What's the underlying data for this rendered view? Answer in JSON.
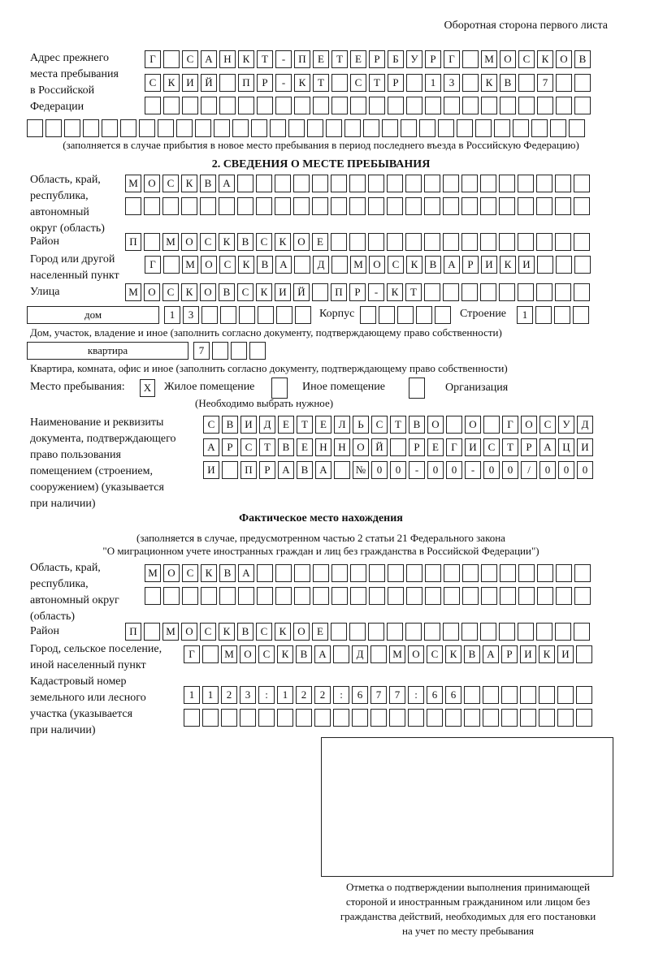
{
  "header": "Оборотная сторона первого листа",
  "prev_address": {
    "label": "Адрес прежнего\nместа пребывания\nв Российской\nФедерации",
    "rows": [
      [
        "Г",
        "",
        "С",
        "А",
        "Н",
        "К",
        "Т",
        "-",
        "П",
        "Е",
        "Т",
        "Е",
        "Р",
        "Б",
        "У",
        "Р",
        "Г",
        "",
        "М",
        "О",
        "С",
        "К",
        "О",
        "В"
      ],
      [
        "С",
        "К",
        "И",
        "Й",
        "",
        "П",
        "Р",
        "-",
        "К",
        "Т",
        "",
        "С",
        "Т",
        "Р",
        "",
        "1",
        "3",
        "",
        "К",
        "В",
        "",
        "7",
        "",
        ""
      ],
      [
        "",
        "",
        "",
        "",
        "",
        "",
        "",
        "",
        "",
        "",
        "",
        "",
        "",
        "",
        "",
        "",
        "",
        "",
        "",
        "",
        "",
        "",
        "",
        ""
      ]
    ],
    "full_row": [
      "",
      "",
      "",
      "",
      "",
      "",
      "",
      "",
      "",
      "",
      "",
      "",
      "",
      "",
      "",
      "",
      "",
      "",
      "",
      "",
      "",
      "",
      "",
      "",
      "",
      "",
      "",
      "",
      "",
      ""
    ],
    "note": "(заполняется в случае прибытия в новое место пребывания в период последнего въезда в Российскую Федерацию)"
  },
  "section2": {
    "title": "2. СВЕДЕНИЯ О МЕСТЕ ПРЕБЫВАНИЯ",
    "region_label": "Область, край,\nреспублика,\nавтономный\nокруг (область)",
    "region_rows": [
      [
        "М",
        "О",
        "С",
        "К",
        "В",
        "А",
        "",
        "",
        "",
        "",
        "",
        "",
        "",
        "",
        "",
        "",
        "",
        "",
        "",
        "",
        "",
        "",
        "",
        "",
        ""
      ],
      [
        "",
        "",
        "",
        "",
        "",
        "",
        "",
        "",
        "",
        "",
        "",
        "",
        "",
        "",
        "",
        "",
        "",
        "",
        "",
        "",
        "",
        "",
        "",
        "",
        ""
      ]
    ],
    "district_label": "Район",
    "district": [
      "П",
      "",
      "М",
      "О",
      "С",
      "К",
      "В",
      "С",
      "К",
      "О",
      "Е",
      "",
      "",
      "",
      "",
      "",
      "",
      "",
      "",
      "",
      "",
      "",
      "",
      "",
      ""
    ],
    "city_label": "Город или другой\nнаселенный пункт",
    "city": [
      "Г",
      "",
      "М",
      "О",
      "С",
      "К",
      "В",
      "А",
      "",
      "Д",
      "",
      "М",
      "О",
      "С",
      "К",
      "В",
      "А",
      "Р",
      "И",
      "К",
      "И",
      "",
      "",
      ""
    ],
    "street_label": "Улица",
    "street": [
      "М",
      "О",
      "С",
      "К",
      "О",
      "В",
      "С",
      "К",
      "И",
      "Й",
      "",
      "П",
      "Р",
      "-",
      "К",
      "Т",
      "",
      "",
      "",
      "",
      "",
      "",
      "",
      "",
      ""
    ],
    "house_type": "дом",
    "house": [
      "1",
      "3",
      "",
      "",
      "",
      "",
      "",
      ""
    ],
    "korpus_label": "Корпус",
    "korpus": [
      "",
      "",
      "",
      "",
      ""
    ],
    "building_label": "Строение",
    "building": [
      "1",
      "",
      "",
      ""
    ],
    "house_note": "Дом, участок, владение и иное (заполнить согласно документу, подтверждающему право собственности)",
    "flat_type": "квартира",
    "flat": [
      "7",
      "",
      "",
      ""
    ],
    "flat_note": "Квартира, комната, офис и иное (заполнить согласно документу, подтверждающему право собственности)",
    "stay_label": "Место пребывания:",
    "options": [
      {
        "label": "Жилое помещение",
        "mark": "X"
      },
      {
        "label": "Иное помещение",
        "mark": ""
      },
      {
        "label": "Организация",
        "mark": ""
      }
    ],
    "choose_note": "(Необходимо выбрать нужное)",
    "doc_label": "Наименование и реквизиты\nдокумента, подтверждающего\nправо пользования\nпомещением (строением,\nсооружением) (указывается\nпри наличии)",
    "doc_rows": [
      [
        "С",
        "В",
        "И",
        "Д",
        "Е",
        "Т",
        "Е",
        "Л",
        "Ь",
        "С",
        "Т",
        "В",
        "О",
        "",
        "О",
        "",
        "Г",
        "О",
        "С",
        "У",
        "Д"
      ],
      [
        "А",
        "Р",
        "С",
        "Т",
        "В",
        "Е",
        "Н",
        "Н",
        "О",
        "Й",
        "",
        "Р",
        "Е",
        "Г",
        "И",
        "С",
        "Т",
        "Р",
        "А",
        "Ц",
        "И"
      ],
      [
        "И",
        "",
        "П",
        "Р",
        "А",
        "В",
        "А",
        "",
        "№",
        "0",
        "0",
        "-",
        "0",
        "0",
        "-",
        "0",
        "0",
        "/",
        "0",
        "0",
        "0"
      ]
    ]
  },
  "actual": {
    "title": "Фактическое место нахождения",
    "note1": "(заполняется в случае, предусмотренном частью 2 статьи 21 Федерального закона",
    "note2": "\"О миграционном учете иностранных граждан и лиц без гражданства в Российской Федерации\")",
    "region_label": "Область, край,\nреспублика,\nавтономный округ\n(область)",
    "region_rows": [
      [
        "М",
        "О",
        "С",
        "К",
        "В",
        "А",
        "",
        "",
        "",
        "",
        "",
        "",
        "",
        "",
        "",
        "",
        "",
        "",
        "",
        "",
        "",
        "",
        "",
        ""
      ],
      [
        "",
        "",
        "",
        "",
        "",
        "",
        "",
        "",
        "",
        "",
        "",
        "",
        "",
        "",
        "",
        "",
        "",
        "",
        "",
        "",
        "",
        "",
        "",
        ""
      ]
    ],
    "district_label": "Район",
    "district": [
      "П",
      "",
      "М",
      "О",
      "С",
      "К",
      "В",
      "С",
      "К",
      "О",
      "Е",
      "",
      "",
      "",
      "",
      "",
      "",
      "",
      "",
      "",
      "",
      "",
      "",
      "",
      ""
    ],
    "city_label": "Город, сельское поселение,\nиной населенный пункт",
    "city": [
      "Г",
      "",
      "М",
      "О",
      "С",
      "К",
      "В",
      "А",
      "",
      "Д",
      "",
      "М",
      "О",
      "С",
      "К",
      "В",
      "А",
      "Р",
      "И",
      "К",
      "И",
      ""
    ],
    "cadastre_label": "Кадастровый номер\nземельного или лесного\nучастка (указывается\nпри наличии)",
    "cadastre_rows": [
      [
        "1",
        "1",
        "2",
        "3",
        ":",
        "1",
        "2",
        "2",
        ":",
        "6",
        "7",
        "7",
        ":",
        "6",
        "6",
        "",
        "",
        "",
        "",
        "",
        "",
        ""
      ],
      [
        "",
        "",
        "",
        "",
        "",
        "",
        "",
        "",
        "",
        "",
        "",
        "",
        "",
        "",
        "",
        "",
        "",
        "",
        "",
        "",
        "",
        ""
      ]
    ],
    "stamp_caption": "Отметка о подтверждении выполнения принимающей\nстороной и иностранным гражданином или лицом без\nгражданства действий, необходимых для его постановки\nна учет по месту пребывания"
  }
}
